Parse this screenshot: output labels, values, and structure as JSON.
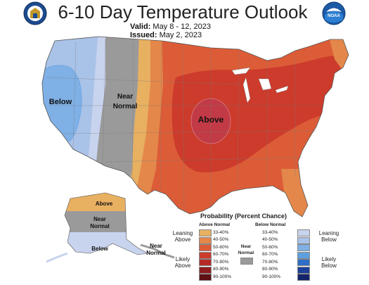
{
  "header": {
    "title": "6-10 Day Temperature Outlook",
    "valid_label": "Valid:",
    "valid_value": "May 8 - 12, 2023",
    "issued_label": "Issued:",
    "issued_value": "May 2, 2023"
  },
  "logos": {
    "left": "doc-seal-icon",
    "right": "noaa-logo-icon",
    "noaa_text": "NOAA"
  },
  "map_labels": {
    "below": "Below",
    "near": "Near",
    "normal": "Normal",
    "above": "Above",
    "ak_above": "Above",
    "ak_near": "Near",
    "ak_normal": "Normal",
    "ak_below": "Below",
    "aleut_near": "Near",
    "aleut_normal": "Normal"
  },
  "legend": {
    "title": "Probability (Percent Chance)",
    "above_header": "Above Normal",
    "below_header": "Below Normal",
    "above_items": [
      {
        "range": "33-40%",
        "color": "#e8b061"
      },
      {
        "range": "40-50%",
        "color": "#e4874a"
      },
      {
        "range": "50-60%",
        "color": "#dc5c37"
      },
      {
        "range": "60-70%",
        "color": "#cc3b2b"
      },
      {
        "range": "70-80%",
        "color": "#b52a26"
      },
      {
        "range": "80-90%",
        "color": "#8e1c1e"
      },
      {
        "range": "90-100%",
        "color": "#5e1014"
      }
    ],
    "below_items": [
      {
        "range": "33-40%",
        "color": "#c8d3ee"
      },
      {
        "range": "40-50%",
        "color": "#a9c2e8"
      },
      {
        "range": "50-60%",
        "color": "#7fb0e6"
      },
      {
        "range": "60-70%",
        "color": "#5e9fe0"
      },
      {
        "range": "70-80%",
        "color": "#2f6fc7"
      },
      {
        "range": "80-90%",
        "color": "#1c3f99"
      },
      {
        "range": "90-100%",
        "color": "#14246a"
      }
    ],
    "near_normal_label_1": "Near",
    "near_normal_label_2": "Normal",
    "near_normal_color": "#9a9a9a",
    "leaning_above_1": "Leaning",
    "leaning_above_2": "Above",
    "likely_above_1": "Likely",
    "likely_above_2": "Above",
    "leaning_below_1": "Leaning",
    "leaning_below_2": "Below",
    "likely_below_1": "Likely",
    "likely_below_2": "Below"
  }
}
